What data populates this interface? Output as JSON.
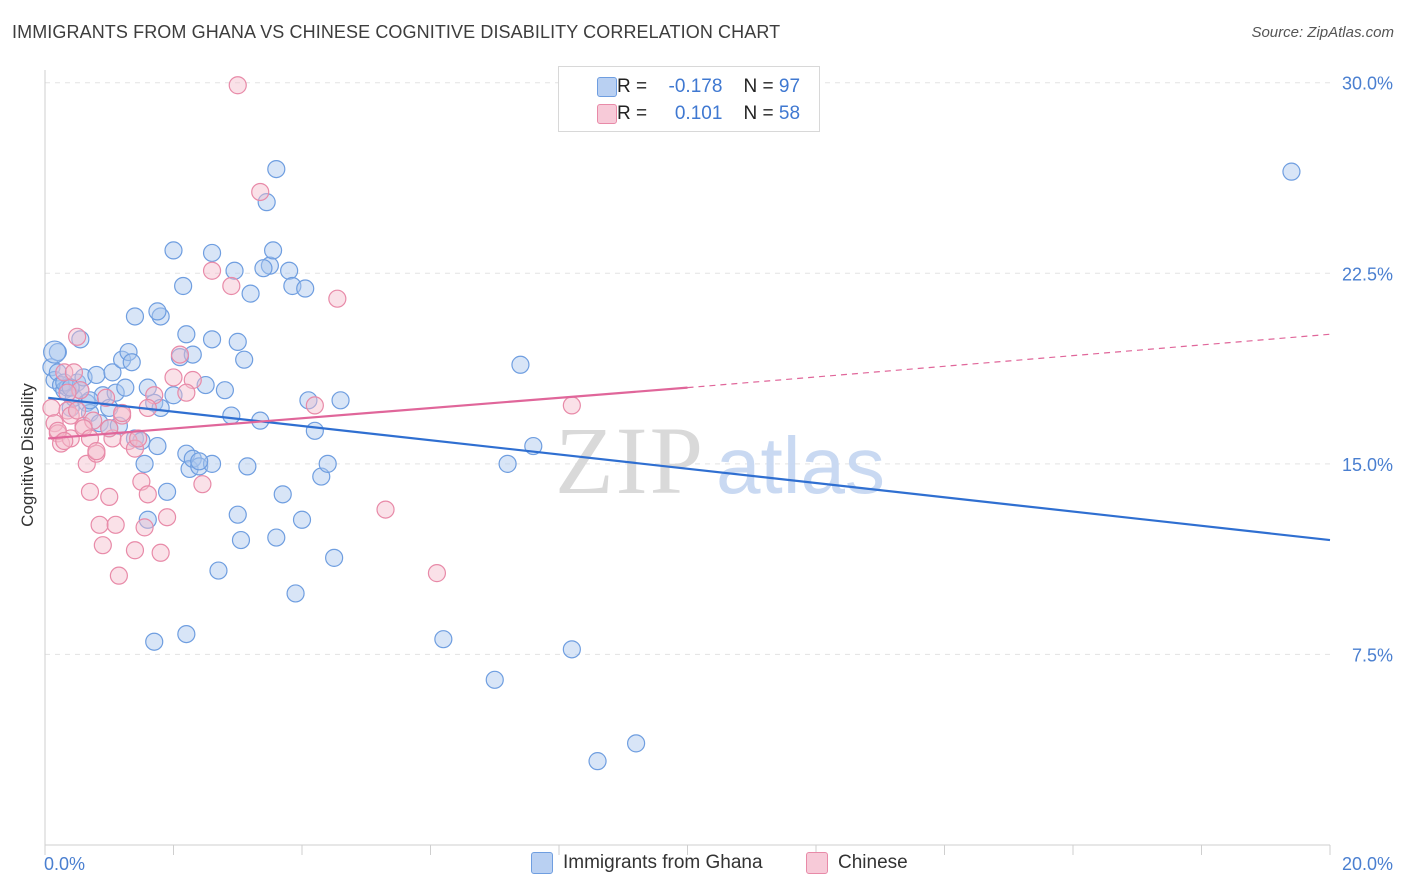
{
  "title": "IMMIGRANTS FROM GHANA VS CHINESE COGNITIVE DISABILITY CORRELATION CHART",
  "source": "Source: ZipAtlas.com",
  "watermark": {
    "zip": "ZIP",
    "atlas": "atlas"
  },
  "legend": {
    "r_label": "R =",
    "n_label": "N =",
    "series": [
      {
        "r": "-0.178",
        "n": "97"
      },
      {
        "r": "0.101",
        "n": "58"
      }
    ]
  },
  "chart_data": {
    "type": "scatter",
    "title": "IMMIGRANTS FROM GHANA VS CHINESE COGNITIVE DISABILITY CORRELATION CHART",
    "xlabel": "",
    "ylabel": "Cognitive Disability",
    "xlim": [
      0,
      20
    ],
    "ylim": [
      0,
      30.5
    ],
    "x_tick_labels": [
      "0.0%",
      "20.0%"
    ],
    "y_ticks": [
      7.5,
      15.0,
      22.5,
      30.0
    ],
    "y_tick_labels": [
      "7.5%",
      "15.0%",
      "22.5%",
      "30.0%"
    ],
    "grid": true,
    "series": [
      {
        "name": "Immigrants from Ghana",
        "color": "#6f9ee0",
        "fill": "#a9c5ee",
        "trend": {
          "x0": 0.05,
          "y0": 17.6,
          "x1": 20.0,
          "y1": 12.0,
          "dashed_from": null
        },
        "points": [
          [
            0.1,
            18.8
          ],
          [
            0.15,
            18.3
          ],
          [
            0.2,
            18.6
          ],
          [
            0.25,
            18.1
          ],
          [
            0.3,
            17.9
          ],
          [
            0.35,
            18.0
          ],
          [
            0.4,
            17.2
          ],
          [
            0.45,
            17.6
          ],
          [
            0.5,
            18.2
          ],
          [
            0.55,
            17.9
          ],
          [
            0.6,
            18.4
          ],
          [
            0.65,
            17.4
          ],
          [
            0.7,
            17.0
          ],
          [
            0.8,
            18.5
          ],
          [
            0.85,
            16.6
          ],
          [
            0.9,
            17.7
          ],
          [
            1.0,
            16.4
          ],
          [
            1.05,
            18.6
          ],
          [
            1.1,
            17.8
          ],
          [
            1.2,
            19.1
          ],
          [
            1.25,
            18.0
          ],
          [
            1.3,
            19.4
          ],
          [
            1.35,
            19.0
          ],
          [
            1.4,
            16.0
          ],
          [
            1.5,
            15.9
          ],
          [
            1.55,
            15.0
          ],
          [
            1.6,
            12.8
          ],
          [
            1.7,
            17.4
          ],
          [
            1.75,
            15.7
          ],
          [
            1.8,
            17.2
          ],
          [
            1.9,
            13.9
          ],
          [
            2.0,
            17.7
          ],
          [
            2.1,
            19.2
          ],
          [
            2.2,
            15.4
          ],
          [
            2.25,
            14.8
          ],
          [
            2.3,
            15.2
          ],
          [
            2.4,
            14.9
          ],
          [
            2.5,
            18.1
          ],
          [
            2.6,
            19.9
          ],
          [
            2.7,
            10.8
          ],
          [
            2.8,
            17.9
          ],
          [
            2.9,
            16.9
          ],
          [
            3.0,
            13.0
          ],
          [
            3.05,
            12.0
          ],
          [
            3.1,
            19.1
          ],
          [
            3.15,
            14.9
          ],
          [
            3.2,
            21.7
          ],
          [
            3.35,
            16.7
          ],
          [
            3.5,
            22.8
          ],
          [
            3.6,
            12.1
          ],
          [
            3.7,
            13.8
          ],
          [
            3.8,
            22.6
          ],
          [
            3.9,
            9.9
          ],
          [
            4.0,
            12.8
          ],
          [
            4.1,
            17.5
          ],
          [
            4.2,
            16.3
          ],
          [
            4.3,
            14.5
          ],
          [
            4.4,
            15.0
          ],
          [
            4.5,
            11.3
          ],
          [
            4.6,
            17.5
          ],
          [
            1.4,
            20.8
          ],
          [
            2.0,
            23.4
          ],
          [
            2.15,
            22.0
          ],
          [
            2.6,
            23.3
          ],
          [
            3.45,
            25.3
          ],
          [
            3.85,
            22.0
          ],
          [
            1.7,
            8.0
          ],
          [
            2.2,
            8.3
          ],
          [
            6.2,
            8.1
          ],
          [
            7.0,
            6.5
          ],
          [
            8.2,
            7.7
          ],
          [
            9.2,
            4.0
          ],
          [
            8.6,
            3.3
          ],
          [
            7.2,
            15.0
          ],
          [
            7.4,
            18.9
          ],
          [
            7.6,
            15.7
          ],
          [
            19.4,
            26.5
          ],
          [
            3.6,
            26.6
          ],
          [
            3.55,
            23.4
          ],
          [
            2.95,
            22.6
          ],
          [
            1.8,
            20.8
          ],
          [
            2.2,
            20.1
          ],
          [
            3.0,
            19.8
          ],
          [
            2.3,
            19.3
          ],
          [
            0.55,
            19.9
          ],
          [
            0.2,
            19.4
          ],
          [
            0.3,
            18.2
          ],
          [
            0.4,
            18.0
          ],
          [
            0.7,
            17.5
          ],
          [
            1.0,
            17.2
          ],
          [
            1.15,
            16.5
          ],
          [
            1.6,
            18.0
          ],
          [
            2.6,
            15.0
          ],
          [
            2.4,
            15.1
          ],
          [
            1.75,
            21.0
          ],
          [
            3.4,
            22.7
          ],
          [
            4.05,
            21.9
          ]
        ]
      },
      {
        "name": "Chinese",
        "color": "#e88aa8",
        "fill": "#f4bccd",
        "trend": {
          "x0": 0.05,
          "y0": 16.0,
          "x1": 10.0,
          "y1": 18.0,
          "dashed_from": 10.0,
          "x2": 20.0,
          "y2": 20.1
        },
        "points": [
          [
            0.1,
            17.2
          ],
          [
            0.15,
            16.6
          ],
          [
            0.2,
            16.2
          ],
          [
            0.25,
            15.8
          ],
          [
            0.3,
            18.6
          ],
          [
            0.35,
            17.1
          ],
          [
            0.4,
            16.0
          ],
          [
            0.45,
            18.6
          ],
          [
            0.5,
            20.0
          ],
          [
            0.55,
            17.9
          ],
          [
            0.6,
            16.5
          ],
          [
            0.65,
            15.0
          ],
          [
            0.7,
            13.9
          ],
          [
            0.75,
            16.7
          ],
          [
            0.8,
            15.4
          ],
          [
            0.85,
            12.6
          ],
          [
            0.9,
            11.8
          ],
          [
            0.95,
            17.6
          ],
          [
            1.0,
            13.7
          ],
          [
            1.05,
            16.0
          ],
          [
            1.1,
            12.6
          ],
          [
            1.15,
            10.6
          ],
          [
            1.2,
            16.9
          ],
          [
            1.3,
            15.9
          ],
          [
            1.4,
            11.6
          ],
          [
            1.5,
            14.3
          ],
          [
            1.55,
            12.5
          ],
          [
            1.6,
            13.8
          ],
          [
            1.7,
            17.7
          ],
          [
            1.8,
            11.5
          ],
          [
            2.0,
            18.4
          ],
          [
            2.1,
            19.3
          ],
          [
            2.3,
            18.3
          ],
          [
            2.45,
            14.2
          ],
          [
            2.6,
            22.6
          ],
          [
            2.9,
            22.0
          ],
          [
            3.35,
            25.7
          ],
          [
            4.55,
            21.5
          ],
          [
            5.3,
            13.2
          ],
          [
            6.1,
            10.7
          ],
          [
            8.2,
            17.3
          ],
          [
            4.2,
            17.3
          ],
          [
            3.0,
            29.9
          ],
          [
            0.2,
            16.3
          ],
          [
            0.3,
            15.9
          ],
          [
            0.4,
            16.9
          ],
          [
            0.5,
            17.1
          ],
          [
            0.6,
            16.4
          ],
          [
            0.7,
            16.0
          ],
          [
            0.8,
            15.5
          ],
          [
            1.0,
            16.4
          ],
          [
            1.2,
            17.0
          ],
          [
            1.4,
            15.6
          ],
          [
            1.6,
            17.2
          ],
          [
            1.9,
            12.9
          ],
          [
            2.2,
            17.8
          ],
          [
            1.45,
            16.0
          ],
          [
            0.35,
            17.8
          ]
        ]
      }
    ]
  },
  "bottom_legend": [
    "Immigrants from Ghana",
    "Chinese"
  ],
  "colors": {
    "blue_line": "#2f6fd1",
    "pink_line": "#e0669a",
    "grid": "#e3e3e3",
    "axis_text": "#4a7fd0"
  }
}
